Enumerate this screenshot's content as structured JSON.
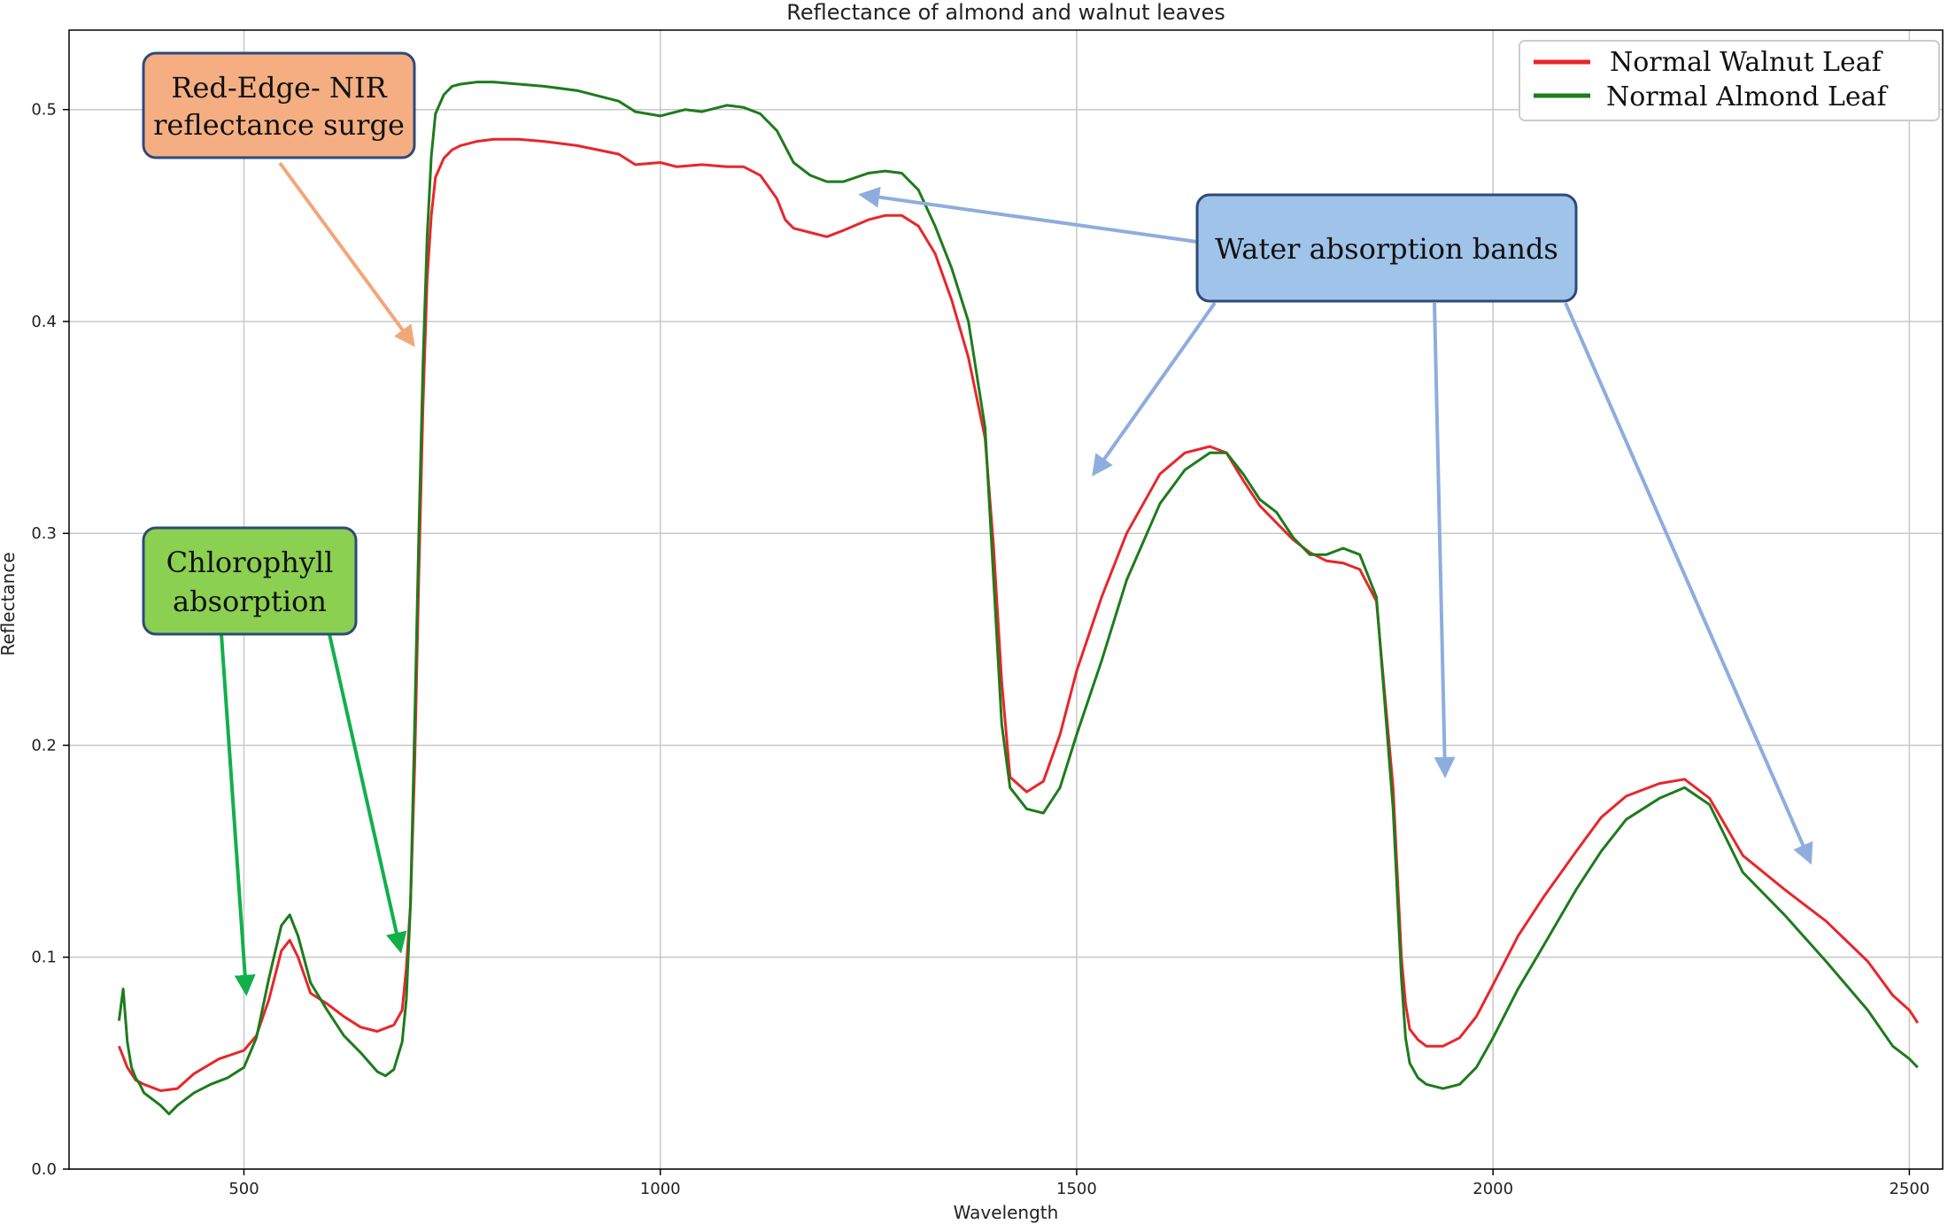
{
  "chart_data": {
    "type": "line",
    "title": "Reflectance of almond and walnut leaves",
    "xlabel": "Wavelength",
    "ylabel": "Reflectance",
    "xlim": [
      290,
      2540
    ],
    "ylim": [
      0.0,
      0.5375
    ],
    "xticks": [
      500,
      1000,
      1500,
      2000,
      2500
    ],
    "yticks": [
      0.0,
      0.1,
      0.2,
      0.3,
      0.4,
      0.5
    ],
    "grid": true,
    "legend_position": "top-right",
    "series": [
      {
        "name": "Normal Walnut Leaf",
        "color": "#e8262b",
        "x": [
          350,
          360,
          370,
          380,
          400,
          420,
          440,
          470,
          500,
          515,
          530,
          545,
          555,
          565,
          580,
          600,
          620,
          640,
          660,
          680,
          690,
          695,
          700,
          705,
          710,
          715,
          720,
          725,
          730,
          740,
          750,
          760,
          780,
          800,
          830,
          860,
          900,
          950,
          970,
          1000,
          1020,
          1050,
          1080,
          1100,
          1120,
          1140,
          1150,
          1160,
          1180,
          1200,
          1220,
          1250,
          1270,
          1290,
          1310,
          1330,
          1350,
          1370,
          1390,
          1400,
          1410,
          1420,
          1440,
          1460,
          1480,
          1500,
          1530,
          1560,
          1600,
          1630,
          1660,
          1680,
          1700,
          1720,
          1740,
          1760,
          1780,
          1800,
          1820,
          1840,
          1860,
          1880,
          1890,
          1895,
          1900,
          1910,
          1920,
          1940,
          1960,
          1980,
          2000,
          2030,
          2060,
          2100,
          2130,
          2160,
          2200,
          2230,
          2260,
          2300,
          2350,
          2400,
          2450,
          2480,
          2500,
          2510
        ],
        "y": [
          0.058,
          0.048,
          0.042,
          0.04,
          0.037,
          0.038,
          0.045,
          0.052,
          0.056,
          0.063,
          0.08,
          0.103,
          0.108,
          0.1,
          0.083,
          0.078,
          0.072,
          0.067,
          0.065,
          0.068,
          0.075,
          0.095,
          0.125,
          0.19,
          0.28,
          0.36,
          0.42,
          0.45,
          0.468,
          0.477,
          0.481,
          0.483,
          0.485,
          0.486,
          0.486,
          0.485,
          0.483,
          0.479,
          0.474,
          0.475,
          0.473,
          0.474,
          0.473,
          0.473,
          0.469,
          0.458,
          0.448,
          0.444,
          0.442,
          0.44,
          0.443,
          0.448,
          0.45,
          0.45,
          0.445,
          0.432,
          0.41,
          0.383,
          0.345,
          0.295,
          0.23,
          0.185,
          0.178,
          0.183,
          0.205,
          0.235,
          0.27,
          0.3,
          0.328,
          0.338,
          0.341,
          0.338,
          0.325,
          0.313,
          0.305,
          0.297,
          0.291,
          0.287,
          0.286,
          0.283,
          0.268,
          0.18,
          0.1,
          0.078,
          0.066,
          0.061,
          0.058,
          0.058,
          0.062,
          0.072,
          0.087,
          0.11,
          0.128,
          0.15,
          0.166,
          0.176,
          0.182,
          0.184,
          0.175,
          0.148,
          0.132,
          0.117,
          0.098,
          0.082,
          0.075,
          0.069
        ]
      },
      {
        "name": "Normal Almond Leaf",
        "color": "#1d7c1b",
        "x": [
          350,
          355,
          360,
          365,
          370,
          375,
          380,
          390,
          400,
          410,
          420,
          440,
          460,
          480,
          500,
          515,
          530,
          545,
          555,
          565,
          580,
          600,
          620,
          640,
          660,
          670,
          680,
          690,
          695,
          700,
          705,
          710,
          715,
          720,
          725,
          730,
          740,
          750,
          760,
          780,
          800,
          830,
          860,
          900,
          950,
          970,
          1000,
          1030,
          1050,
          1080,
          1100,
          1120,
          1140,
          1160,
          1180,
          1200,
          1220,
          1250,
          1270,
          1290,
          1310,
          1330,
          1350,
          1370,
          1390,
          1400,
          1410,
          1420,
          1440,
          1460,
          1480,
          1500,
          1530,
          1560,
          1600,
          1630,
          1660,
          1680,
          1700,
          1720,
          1740,
          1760,
          1780,
          1800,
          1820,
          1840,
          1860,
          1880,
          1890,
          1895,
          1900,
          1910,
          1920,
          1940,
          1960,
          1980,
          2000,
          2030,
          2060,
          2100,
          2130,
          2160,
          2200,
          2230,
          2260,
          2300,
          2350,
          2400,
          2450,
          2480,
          2500,
          2510
        ],
        "y": [
          0.07,
          0.085,
          0.06,
          0.048,
          0.043,
          0.04,
          0.036,
          0.033,
          0.03,
          0.026,
          0.03,
          0.036,
          0.04,
          0.043,
          0.048,
          0.062,
          0.09,
          0.115,
          0.12,
          0.11,
          0.088,
          0.075,
          0.063,
          0.055,
          0.046,
          0.044,
          0.047,
          0.06,
          0.08,
          0.125,
          0.21,
          0.3,
          0.38,
          0.44,
          0.478,
          0.498,
          0.507,
          0.511,
          0.512,
          0.513,
          0.513,
          0.512,
          0.511,
          0.509,
          0.504,
          0.499,
          0.497,
          0.5,
          0.499,
          0.502,
          0.501,
          0.498,
          0.49,
          0.475,
          0.469,
          0.466,
          0.466,
          0.47,
          0.471,
          0.47,
          0.462,
          0.445,
          0.425,
          0.4,
          0.35,
          0.28,
          0.21,
          0.18,
          0.17,
          0.168,
          0.18,
          0.205,
          0.24,
          0.278,
          0.314,
          0.33,
          0.338,
          0.338,
          0.328,
          0.316,
          0.31,
          0.298,
          0.29,
          0.29,
          0.293,
          0.29,
          0.27,
          0.17,
          0.09,
          0.062,
          0.05,
          0.043,
          0.04,
          0.038,
          0.04,
          0.048,
          0.062,
          0.085,
          0.105,
          0.132,
          0.15,
          0.165,
          0.175,
          0.18,
          0.172,
          0.14,
          0.12,
          0.098,
          0.075,
          0.058,
          0.052,
          0.048
        ]
      }
    ],
    "annotations": [
      {
        "id": "red-edge",
        "lines": [
          "Red-Edge- NIR",
          "reflectance surge"
        ],
        "fill": "#f4ae82"
      },
      {
        "id": "chlorophyll",
        "lines": [
          "Chlorophyll",
          "absorption"
        ],
        "fill": "#8bd050"
      },
      {
        "id": "water",
        "lines": [
          "Water absorption bands"
        ],
        "fill": "#9fc3e9"
      }
    ]
  }
}
